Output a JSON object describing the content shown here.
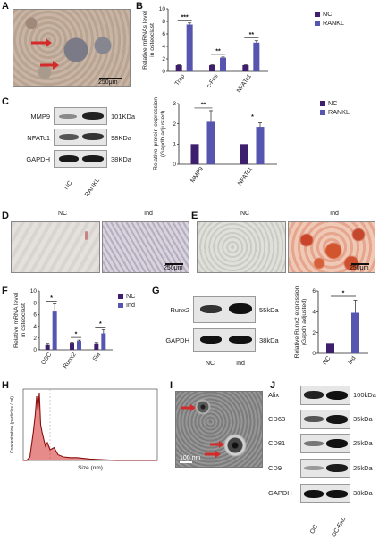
{
  "panels": {
    "A": "A",
    "B": "B",
    "C": "C",
    "D": "D",
    "E": "E",
    "F": "F",
    "G": "G",
    "H": "H",
    "I": "I",
    "J": "J"
  },
  "colors": {
    "nc": "#3d1f6e",
    "treat": "#5656b0",
    "red": "#d42a2a"
  },
  "a": {
    "scale": "250μm"
  },
  "b": {
    "ylabel": "Relative mRNAs level in osteoclast",
    "legend": [
      "NC",
      "RANKL"
    ],
    "categories": [
      "Trap",
      "c-Fos",
      "NFATc1"
    ],
    "sig": [
      "***",
      "**",
      "**"
    ]
  },
  "c_blot": {
    "rows": [
      {
        "name": "MMP9",
        "kda": "101KDa"
      },
      {
        "name": "NFATc1",
        "kda": "98KDa"
      },
      {
        "name": "GAPDH",
        "kda": "38KDa"
      }
    ],
    "lanes": [
      "NC",
      "RANKL"
    ]
  },
  "c_chart": {
    "ylabel": "Relative protein expression (Gapdh adjusted)",
    "legend": [
      "NC",
      "RANKL"
    ],
    "categories": [
      "MMP9",
      "NFATc1"
    ],
    "sig": [
      "**",
      "*"
    ]
  },
  "d": {
    "left": "NC",
    "right": "Ind",
    "scale": "250μm"
  },
  "e": {
    "left": "NC",
    "right": "Ind",
    "scale": "250μm"
  },
  "f": {
    "ylabel": "Relative mRNA level in osteoclast",
    "legend": [
      "NC",
      "Ind"
    ],
    "categories": [
      "OSC",
      "Runx2",
      "Sia"
    ],
    "sig": [
      "*",
      "*",
      "*"
    ]
  },
  "g_blot": {
    "rows": [
      {
        "name": "Runx2",
        "kda": "55kDa"
      },
      {
        "name": "GAPDH",
        "kda": "38kDa"
      }
    ],
    "lanes": [
      "NC",
      "Ind"
    ]
  },
  "g_chart": {
    "ylabel": "Relative Runx2 expression (Gapdh adjusted)",
    "categories": [
      "NC",
      "Ind"
    ],
    "sig": "*"
  },
  "h": {
    "xlabel": "Size (nm)",
    "ylabel": "Concentration (particles / ml)"
  },
  "i": {
    "scale": "100 nm"
  },
  "j_blot": {
    "rows": [
      {
        "name": "Alix",
        "kda": "100kDa"
      },
      {
        "name": "CD63",
        "kda": "35kDa"
      },
      {
        "name": "CD81",
        "kda": "25kDa"
      },
      {
        "name": "CD9",
        "kda": "25kDa"
      },
      {
        "name": "GAPDH",
        "kda": "38kDa"
      }
    ],
    "lanes": [
      "OC",
      "OC-Exo"
    ]
  },
  "chart_data": [
    {
      "type": "bar",
      "id": "B",
      "categories": [
        "Trap",
        "c-Fos",
        "NFATc1"
      ],
      "series": [
        {
          "name": "NC",
          "values": [
            1,
            1,
            1
          ],
          "errors": [
            0.05,
            0.05,
            0.05
          ]
        },
        {
          "name": "RANKL",
          "values": [
            7.5,
            2.2,
            4.6
          ],
          "errors": [
            0.25,
            0.1,
            0.3
          ]
        }
      ],
      "ylim": [
        0,
        10
      ],
      "yticks": [
        0,
        2,
        4,
        6,
        8,
        10
      ]
    },
    {
      "type": "bar",
      "id": "C",
      "categories": [
        "MMP9",
        "NFATc1"
      ],
      "series": [
        {
          "name": "NC",
          "values": [
            1,
            1
          ],
          "errors": [
            0,
            0
          ]
        },
        {
          "name": "RANKL",
          "values": [
            2.1,
            1.85
          ],
          "errors": [
            0.55,
            0.2
          ]
        }
      ],
      "ylim": [
        0,
        3
      ],
      "yticks": [
        0,
        1,
        2,
        3
      ]
    },
    {
      "type": "bar",
      "id": "F",
      "categories": [
        "OSC",
        "Runx2",
        "Sia"
      ],
      "series": [
        {
          "name": "NC",
          "values": [
            0.8,
            1.2,
            1.1
          ],
          "errors": [
            0.3,
            0.1,
            0.15
          ]
        },
        {
          "name": "Ind",
          "values": [
            6.5,
            1.5,
            2.8
          ],
          "errors": [
            1.3,
            0.15,
            0.6
          ]
        }
      ],
      "ylim": [
        0,
        10
      ],
      "yticks": [
        0,
        2,
        4,
        6,
        8,
        10
      ]
    },
    {
      "type": "bar",
      "id": "G",
      "categories": [
        "NC",
        "Ind"
      ],
      "series": [
        {
          "name": "",
          "values": [
            1,
            3.9
          ],
          "errors": [
            0,
            1.2
          ]
        }
      ],
      "ylim": [
        0,
        6
      ],
      "yticks": [
        0,
        2,
        4,
        6
      ]
    },
    {
      "type": "line",
      "id": "H",
      "x": [
        0,
        25,
        50,
        75,
        90,
        100,
        110,
        120,
        130,
        140,
        150,
        165,
        180,
        200,
        230,
        260,
        300,
        350,
        400,
        500,
        600,
        700,
        800,
        900,
        1000
      ],
      "y": [
        0,
        0,
        0.5,
        4,
        6.5,
        9,
        7,
        9.5,
        5,
        4,
        3.2,
        2,
        2.5,
        1.5,
        1.8,
        0.8,
        0.5,
        0.4,
        0.4,
        0.2,
        0.1,
        0,
        0,
        0,
        0
      ],
      "xlim": [
        0,
        1000
      ],
      "ylim": [
        0,
        10
      ]
    }
  ]
}
